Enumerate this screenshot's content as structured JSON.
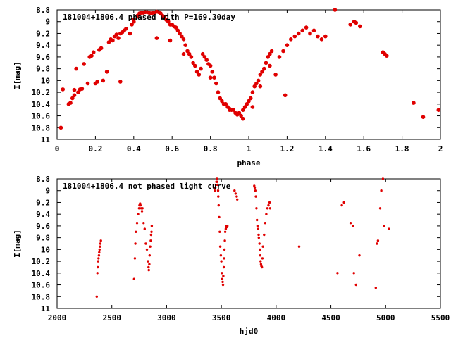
{
  "colors": {
    "points": "#e00000",
    "axes": "#000000",
    "background": "#ffffff"
  },
  "chart_data": [
    {
      "type": "scatter",
      "title": "181004+1806.4 phased with P=169.30day",
      "xlabel": "phase",
      "ylabel": "I[mag]",
      "xlim": [
        0,
        2
      ],
      "ylim": [
        11,
        8.8
      ],
      "y_inverted": true,
      "grid": false,
      "xticks": [
        "0",
        "0.2",
        "0.4",
        "0.6",
        "0.8",
        "1",
        "1.2",
        "1.4",
        "1.6",
        "1.8",
        "2"
      ],
      "yticks": [
        "8.8",
        "9",
        "9.2",
        "9.4",
        "9.6",
        "9.8",
        "10",
        "10.2",
        "10.4",
        "10.6",
        "10.8",
        "11"
      ],
      "x": [
        0.02,
        0.03,
        0.06,
        0.07,
        0.08,
        0.09,
        0.1,
        0.11,
        0.12,
        0.13,
        0.09,
        0.14,
        0.16,
        0.17,
        0.18,
        0.19,
        0.2,
        0.21,
        0.22,
        0.23,
        0.24,
        0.26,
        0.27,
        0.28,
        0.29,
        0.3,
        0.31,
        0.32,
        0.33,
        0.34,
        0.35,
        0.36,
        0.38,
        0.39,
        0.4,
        0.4,
        0.42,
        0.43,
        0.44,
        0.45,
        0.46,
        0.47,
        0.48,
        0.49,
        0.5,
        0.51,
        0.52,
        0.53,
        0.54,
        0.55,
        0.56,
        0.57,
        0.58,
        0.59,
        0.6,
        0.61,
        0.62,
        0.63,
        0.64,
        0.65,
        0.66,
        0.67,
        0.68,
        0.69,
        0.7,
        0.71,
        0.72,
        0.73,
        0.74,
        0.75,
        0.76,
        0.77,
        0.78,
        0.79,
        0.8,
        0.81,
        0.82,
        0.83,
        0.84,
        0.85,
        0.86,
        0.87,
        0.88,
        0.89,
        0.9,
        0.91,
        0.92,
        0.93,
        0.94,
        0.95,
        0.96,
        0.97,
        0.98,
        0.99,
        1.0,
        1.01,
        1.02,
        1.03,
        1.04,
        1.05,
        1.06,
        1.07,
        1.08,
        1.09,
        1.1,
        1.11,
        1.12,
        1.14,
        1.16,
        1.18,
        1.2,
        1.22,
        1.24,
        1.26,
        1.28,
        1.3,
        1.32,
        1.34,
        1.36,
        1.38,
        1.4,
        1.45,
        1.53,
        1.55,
        1.56,
        1.58,
        1.7,
        1.71,
        1.72,
        1.86,
        1.91,
        1.99,
        0.26,
        0.33,
        0.52,
        0.59,
        0.66,
        0.8,
        0.9,
        0.97,
        1.19,
        1.02,
        1.06,
        1.11
      ],
      "y": [
        10.8,
        10.15,
        10.4,
        10.38,
        10.3,
        10.25,
        9.8,
        10.2,
        10.15,
        10.14,
        10.16,
        9.72,
        10.05,
        9.6,
        9.58,
        9.52,
        10.05,
        10.02,
        9.48,
        9.45,
        10.0,
        9.85,
        9.35,
        9.3,
        9.32,
        9.25,
        9.22,
        9.28,
        9.2,
        9.18,
        9.15,
        9.12,
        9.2,
        9.05,
        9.0,
        8.96,
        8.9,
        8.86,
        8.85,
        8.85,
        8.84,
        8.84,
        8.85,
        8.86,
        8.85,
        8.85,
        8.83,
        8.84,
        8.86,
        8.9,
        8.92,
        8.97,
        9.0,
        9.05,
        9.05,
        9.08,
        9.1,
        9.15,
        9.2,
        9.25,
        9.3,
        9.4,
        9.5,
        9.55,
        9.6,
        9.7,
        9.75,
        9.85,
        9.9,
        9.8,
        9.55,
        9.6,
        9.65,
        9.72,
        9.75,
        9.85,
        9.95,
        10.05,
        10.2,
        10.3,
        10.35,
        10.4,
        10.4,
        10.45,
        10.48,
        10.5,
        10.5,
        10.55,
        10.58,
        10.55,
        10.6,
        10.5,
        10.45,
        10.4,
        10.35,
        10.3,
        10.2,
        10.1,
        10.05,
        10.0,
        9.9,
        9.85,
        9.8,
        9.7,
        9.6,
        9.55,
        9.5,
        9.9,
        9.6,
        9.5,
        9.4,
        9.3,
        9.25,
        9.2,
        9.15,
        9.1,
        9.2,
        9.15,
        9.25,
        9.3,
        9.25,
        8.8,
        9.05,
        9.0,
        9.02,
        9.08,
        9.52,
        9.55,
        9.58,
        10.38,
        10.62,
        10.5,
        9.85,
        10.02,
        9.28,
        9.32,
        9.55,
        9.95,
        10.5,
        10.65,
        10.25,
        10.45,
        10.1,
        9.75
      ],
      "point_color": "#e00000"
    },
    {
      "type": "scatter",
      "title": "181004+1806.4 not phased light curve",
      "xlabel": "hjd0",
      "ylabel": "I[mag]",
      "xlim": [
        2000,
        5500
      ],
      "ylim": [
        11,
        8.8
      ],
      "y_inverted": true,
      "grid": false,
      "xticks": [
        "2000",
        "2500",
        "3000",
        "3500",
        "4000",
        "4500",
        "5000",
        "5500"
      ],
      "yticks": [
        "8.8",
        "9",
        "9.2",
        "9.4",
        "9.6",
        "9.8",
        "10",
        "10.2",
        "10.4",
        "10.6",
        "10.8",
        "11"
      ],
      "x": [
        2362,
        2368,
        2372,
        2375,
        2378,
        2382,
        2385,
        2388,
        2392,
        2395,
        2400,
        2703,
        2710,
        2715,
        2720,
        2730,
        2740,
        2748,
        2752,
        2758,
        2762,
        2768,
        2775,
        2780,
        2790,
        2800,
        2810,
        2820,
        2830,
        2835,
        2838,
        2842,
        2845,
        2850,
        2855,
        2858,
        2862,
        2865,
        3440,
        3445,
        3450,
        3455,
        3460,
        3462,
        3465,
        3470,
        3472,
        3475,
        3480,
        3485,
        3490,
        3495,
        3500,
        3505,
        3508,
        3512,
        3515,
        3518,
        3522,
        3525,
        3528,
        3532,
        3535,
        3540,
        3545,
        3548,
        3555,
        3620,
        3630,
        3640,
        3645,
        3800,
        3805,
        3810,
        3815,
        3820,
        3825,
        3830,
        3835,
        3840,
        3842,
        3848,
        3852,
        3855,
        3858,
        3862,
        3865,
        3870,
        3875,
        3880,
        3890,
        3900,
        3910,
        3920,
        3930,
        3940,
        3945,
        4210,
        4560,
        4600,
        4620,
        4680,
        4700,
        4710,
        4730,
        4760,
        4910,
        4920,
        4930,
        4950,
        4960,
        4975,
        4985,
        5030
      ],
      "y": [
        10.8,
        10.4,
        10.3,
        10.2,
        10.15,
        10.1,
        10.05,
        10.0,
        9.95,
        9.9,
        9.85,
        10.5,
        10.15,
        9.9,
        9.7,
        9.55,
        9.4,
        9.3,
        9.25,
        9.22,
        9.25,
        9.3,
        9.35,
        9.3,
        9.55,
        9.65,
        9.9,
        10.0,
        10.2,
        10.3,
        10.35,
        10.25,
        10.1,
        9.95,
        9.85,
        9.75,
        9.7,
        9.6,
        9.0,
        8.95,
        8.9,
        8.85,
        8.8,
        8.85,
        8.9,
        9.0,
        9.1,
        9.25,
        9.45,
        9.7,
        9.95,
        10.1,
        10.2,
        10.4,
        10.5,
        10.55,
        10.6,
        10.45,
        10.3,
        10.15,
        10.0,
        9.85,
        9.7,
        9.65,
        9.6,
        9.62,
        9.6,
        9.0,
        9.05,
        9.1,
        9.15,
        8.92,
        8.95,
        9.0,
        9.1,
        9.3,
        9.5,
        9.6,
        9.65,
        9.75,
        9.8,
        9.9,
        10.0,
        10.1,
        10.2,
        10.25,
        10.28,
        10.3,
        10.15,
        9.95,
        9.75,
        9.55,
        9.4,
        9.3,
        9.25,
        9.2,
        9.3,
        9.95,
        10.4,
        9.25,
        9.2,
        9.55,
        9.6,
        10.4,
        10.6,
        10.1,
        10.65,
        9.9,
        9.85,
        9.3,
        9.0,
        8.8,
        9.6,
        9.65
      ],
      "point_color": "#e00000"
    }
  ]
}
